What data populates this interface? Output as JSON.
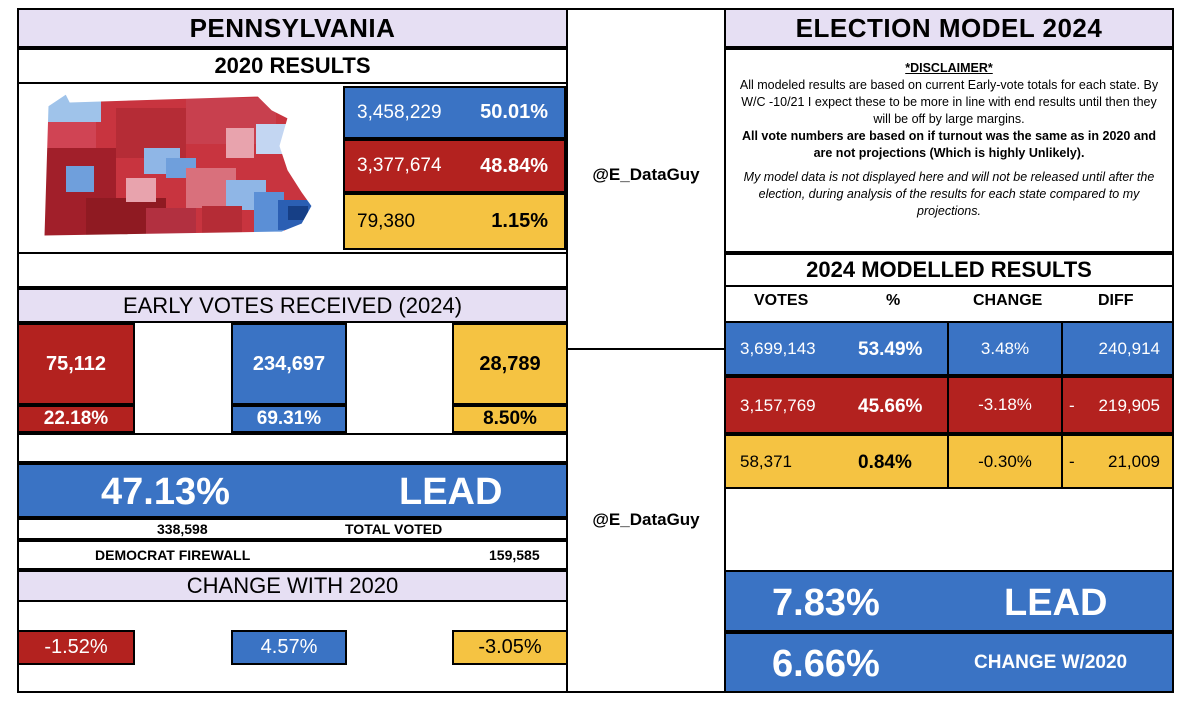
{
  "left": {
    "state_title": "PENNSYLVANIA",
    "results_2020_title": "2020 RESULTS",
    "results_2020": [
      {
        "party": "dem",
        "votes": "3,458,229",
        "pct": "50.01%"
      },
      {
        "party": "rep",
        "votes": "3,377,674",
        "pct": "48.84%"
      },
      {
        "party": "other",
        "votes": "79,380",
        "pct": "1.15%"
      }
    ],
    "early_title": "EARLY VOTES RECEIVED (2024)",
    "early": {
      "rep": {
        "votes": "75,112",
        "pct": "22.18%"
      },
      "dem": {
        "votes": "234,697",
        "pct": "69.31%"
      },
      "other": {
        "votes": "28,789",
        "pct": "8.50%"
      }
    },
    "lead_pct": "47.13%",
    "lead_label": "LEAD",
    "total_voted_value": "338,598",
    "total_voted_label": "TOTAL VOTED",
    "firewall_label": "DEMOCRAT FIREWALL",
    "firewall_value": "159,585",
    "change_title": "CHANGE WITH 2020",
    "change": {
      "rep": "-1.52%",
      "dem": "4.57%",
      "other": "-3.05%"
    }
  },
  "middle": {
    "handle_top": "@E_DataGuy",
    "handle_bottom": "@E_DataGuy"
  },
  "right": {
    "model_title": "ELECTION MODEL 2024",
    "disclaimer_title": "*DISCLAIMER*",
    "disclaimer_p1": "All modeled results are based on current Early-vote totals for each state. By W/C -10/21 I expect these to be more in line with end results until then they will be off by large margins.",
    "disclaimer_p2": "All vote numbers are based on if turnout was the same as in 2020 and are not projections (Which is highly Unlikely).",
    "disclaimer_p3": "My model data is not displayed here and will not be released until after the election, during analysis of the results for each state compared to my projections.",
    "modelled_title": "2024 MODELLED RESULTS",
    "columns": {
      "votes": "VOTES",
      "pct": "%",
      "change": "CHANGE",
      "diff": "DIFF"
    },
    "rows": [
      {
        "party": "dem",
        "votes": "3,699,143",
        "pct": "53.49%",
        "change": "3.48%",
        "diff_sign": "",
        "diff": "240,914"
      },
      {
        "party": "rep",
        "votes": "3,157,769",
        "pct": "45.66%",
        "change": "-3.18%",
        "diff_sign": "-",
        "diff": "219,905"
      },
      {
        "party": "other",
        "votes": "58,371",
        "pct": "0.84%",
        "change": "-0.30%",
        "diff_sign": "-",
        "diff": "21,009"
      }
    ],
    "lead_pct": "7.83%",
    "lead_label": "LEAD",
    "change_pct": "6.66%",
    "change_label": "CHANGE W/2020"
  },
  "colors": {
    "dem": "#3a73c4",
    "rep": "#b3221f",
    "other": "#f5c342",
    "header": "#e6dff3"
  }
}
